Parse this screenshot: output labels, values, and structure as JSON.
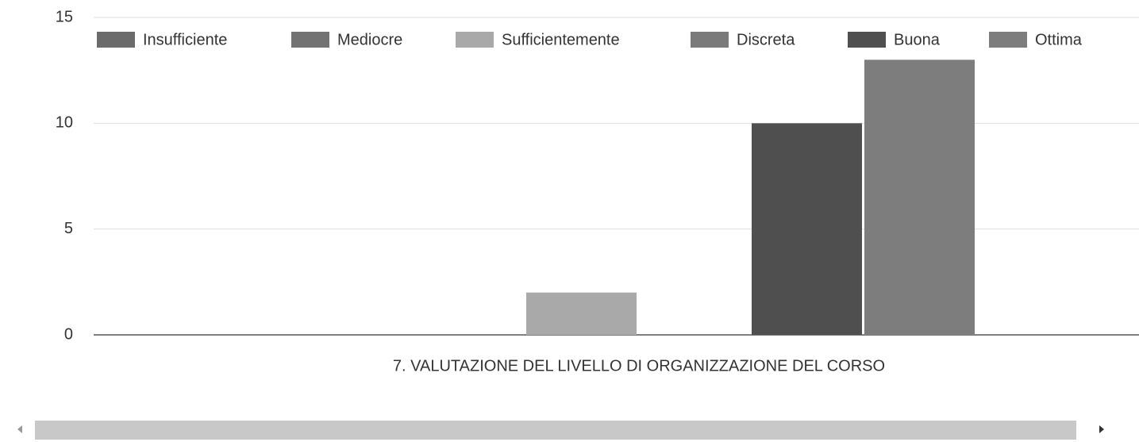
{
  "chart_data": {
    "type": "bar",
    "categories": [
      "7. VALUTAZIONE DEL LIVELLO DI ORGANIZZAZIONE DEL CORSO"
    ],
    "series": [
      {
        "name": "Insufficiente",
        "color": "#6b6b6b",
        "values": [
          0
        ]
      },
      {
        "name": "Mediocre",
        "color": "#727272",
        "values": [
          0
        ]
      },
      {
        "name": "Sufficientemente",
        "color": "#a9a9a9",
        "values": [
          2
        ]
      },
      {
        "name": "Discreta",
        "color": "#7a7a7a",
        "values": [
          0
        ]
      },
      {
        "name": "Buona",
        "color": "#4f4f4f",
        "values": [
          10
        ]
      },
      {
        "name": "Ottima",
        "color": "#7d7d7d",
        "values": [
          13
        ]
      }
    ],
    "ylim": [
      0,
      15
    ],
    "yticks": [
      0,
      5,
      10,
      15
    ],
    "grid": true,
    "legend": "top"
  }
}
